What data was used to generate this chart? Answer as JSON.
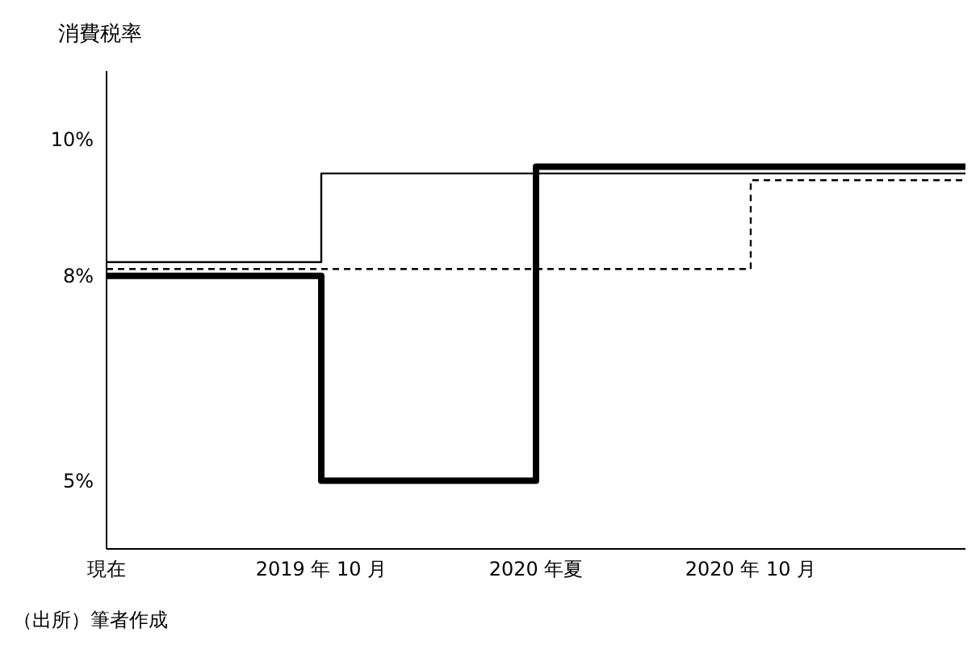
{
  "chart_data": {
    "type": "step",
    "ylabel": "消費税率",
    "categories": [
      "現在",
      "2019 年 10 月",
      "2020 年夏",
      "2020 年 10 月",
      null
    ],
    "series": [
      {
        "color": "#000000",
        "line_style": "solid",
        "values": [
          8,
          5,
          9.6,
          9.6,
          9.6
        ]
      },
      {
        "color": "#000000",
        "line_style": "solid",
        "values": [
          8.2,
          9.5,
          9.5,
          9.5,
          9.5
        ]
      },
      {
        "color": "#000000",
        "line_style": "dashed",
        "values": [
          8.1,
          8.1,
          8.1,
          9.4,
          9.4
        ]
      }
    ],
    "ylim": [
      4,
      11
    ],
    "yticks": [
      {
        "value": 5,
        "label": "5%"
      },
      {
        "value": 8,
        "label": "8%"
      },
      {
        "value": 10,
        "label": "10%"
      }
    ],
    "grid": false,
    "marker": "none",
    "annotations": [
      "（出所）筆者作成"
    ]
  }
}
